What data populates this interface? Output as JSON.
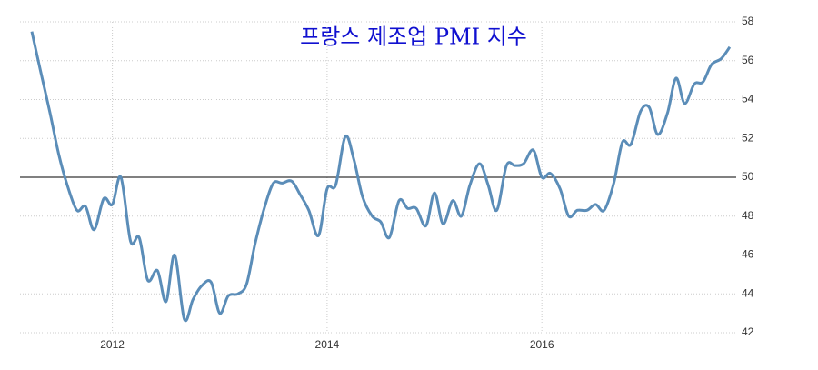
{
  "chart_data": {
    "type": "line",
    "title": "프랑스 제조업 PMI 지수",
    "x": [
      2011.25,
      2011.33,
      2011.42,
      2011.5,
      2011.58,
      2011.67,
      2011.75,
      2011.83,
      2011.92,
      2012.0,
      2012.08,
      2012.17,
      2012.25,
      2012.33,
      2012.42,
      2012.5,
      2012.58,
      2012.67,
      2012.75,
      2012.83,
      2012.92,
      2013.0,
      2013.08,
      2013.17,
      2013.25,
      2013.33,
      2013.42,
      2013.5,
      2013.58,
      2013.67,
      2013.75,
      2013.83,
      2013.92,
      2014.0,
      2014.08,
      2014.17,
      2014.25,
      2014.33,
      2014.42,
      2014.5,
      2014.58,
      2014.67,
      2014.75,
      2014.83,
      2014.92,
      2015.0,
      2015.08,
      2015.17,
      2015.25,
      2015.33,
      2015.42,
      2015.5,
      2015.58,
      2015.67,
      2015.75,
      2015.83,
      2015.92,
      2016.0,
      2016.08,
      2016.17,
      2016.25,
      2016.33,
      2016.42,
      2016.5,
      2016.58,
      2016.67,
      2016.75,
      2016.83,
      2016.92,
      2017.0,
      2017.08,
      2017.17,
      2017.25,
      2017.33,
      2017.42,
      2017.5,
      2017.58,
      2017.67,
      2017.75
    ],
    "series": [
      {
        "color": "#5b8db8",
        "values": [
          57.5,
          55.5,
          53.3,
          51.2,
          49.6,
          48.3,
          48.5,
          47.3,
          48.9,
          48.6,
          50.0,
          46.7,
          46.9,
          44.7,
          45.2,
          43.6,
          46.0,
          42.7,
          43.7,
          44.4,
          44.6,
          43.0,
          43.9,
          44.0,
          44.5,
          46.6,
          48.5,
          49.7,
          49.7,
          49.8,
          49.1,
          48.3,
          47.0,
          49.4,
          49.6,
          52.1,
          50.9,
          49.0,
          48.0,
          47.7,
          46.9,
          48.8,
          48.4,
          48.4,
          47.5,
          49.2,
          47.6,
          48.8,
          48.0,
          49.6,
          50.7,
          49.6,
          48.3,
          50.6,
          50.6,
          50.7,
          51.4,
          50.0,
          50.2,
          49.4,
          48.0,
          48.3,
          48.3,
          48.6,
          48.3,
          49.7,
          51.8,
          51.7,
          53.4,
          53.6,
          52.2,
          53.3,
          55.1,
          53.8,
          54.8,
          54.9,
          55.8,
          56.1,
          56.7
        ]
      }
    ],
    "xlim": [
      2011.14,
      2017.81
    ],
    "xticks": [
      2012,
      2014,
      2016
    ],
    "ylim": [
      42,
      58
    ],
    "yticks": [
      42,
      44,
      46,
      48,
      50,
      52,
      54,
      56,
      58
    ],
    "reference_line": 50,
    "grid": true
  }
}
